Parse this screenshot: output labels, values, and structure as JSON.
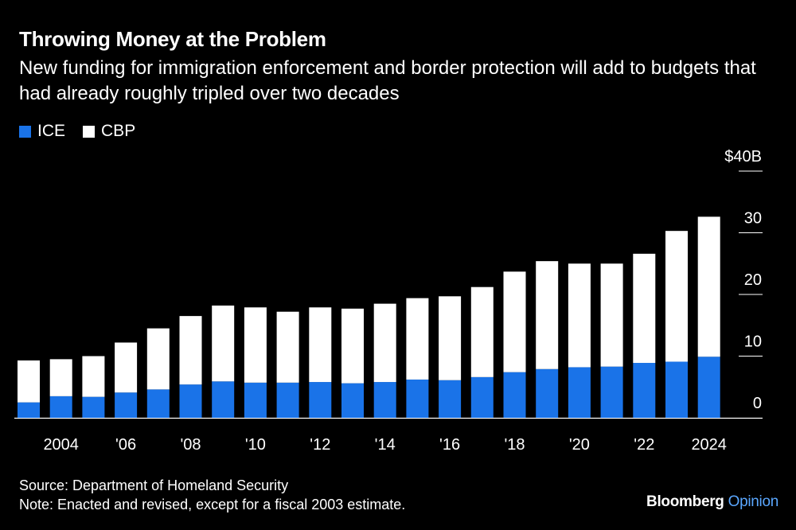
{
  "title": "Throwing Money at the Problem",
  "subtitle": "New funding for immigration enforcement and border protection will add to budgets that had already roughly tripled over two decades",
  "legend": {
    "ice": {
      "label": "ICE",
      "color": "#1a73e8"
    },
    "cbp": {
      "label": "CBP",
      "color": "#ffffff"
    }
  },
  "chart_data": {
    "type": "bar",
    "stacked": true,
    "categories": [
      "2003",
      "2004",
      "2005",
      "2006",
      "2007",
      "2008",
      "2009",
      "2010",
      "2011",
      "2012",
      "2013",
      "2014",
      "2015",
      "2016",
      "2017",
      "2018",
      "2019",
      "2020",
      "2021",
      "2022",
      "2023",
      "2024"
    ],
    "x_tick_labels": [
      {
        "index": 1,
        "label": "2004"
      },
      {
        "index": 3,
        "label": "'06"
      },
      {
        "index": 5,
        "label": "'08"
      },
      {
        "index": 7,
        "label": "'10"
      },
      {
        "index": 9,
        "label": "'12"
      },
      {
        "index": 11,
        "label": "'14"
      },
      {
        "index": 13,
        "label": "'16"
      },
      {
        "index": 15,
        "label": "'18"
      },
      {
        "index": 17,
        "label": "'20"
      },
      {
        "index": 19,
        "label": "'22"
      },
      {
        "index": 21,
        "label": "2024"
      }
    ],
    "series": [
      {
        "name": "ICE",
        "color": "#1a73e8",
        "values": [
          2.5,
          3.5,
          3.4,
          4.1,
          4.6,
          5.4,
          5.9,
          5.7,
          5.7,
          5.8,
          5.6,
          5.8,
          6.2,
          6.1,
          6.6,
          7.4,
          7.9,
          8.2,
          8.3,
          8.9,
          9.1,
          9.9
        ]
      },
      {
        "name": "CBP",
        "color": "#ffffff",
        "values": [
          6.8,
          6.0,
          6.6,
          8.1,
          9.9,
          11.1,
          12.3,
          12.2,
          11.5,
          12.1,
          12.1,
          12.7,
          13.2,
          13.6,
          14.6,
          16.3,
          17.5,
          16.8,
          16.7,
          17.7,
          21.2,
          22.7
        ]
      }
    ],
    "ylim": [
      0,
      40
    ],
    "y_ticks": [
      {
        "value": 0,
        "label": "0"
      },
      {
        "value": 10,
        "label": "10"
      },
      {
        "value": 20,
        "label": "20"
      },
      {
        "value": 30,
        "label": "30"
      },
      {
        "value": 40,
        "label": "$40B"
      }
    ],
    "grid": false,
    "legend_position": "top-left"
  },
  "source": "Source: Department of Homeland Security",
  "note": "Note: Enacted and revised, except for a fiscal 2003 estimate.",
  "brand": {
    "name": "Bloomberg",
    "section": "Opinion"
  }
}
